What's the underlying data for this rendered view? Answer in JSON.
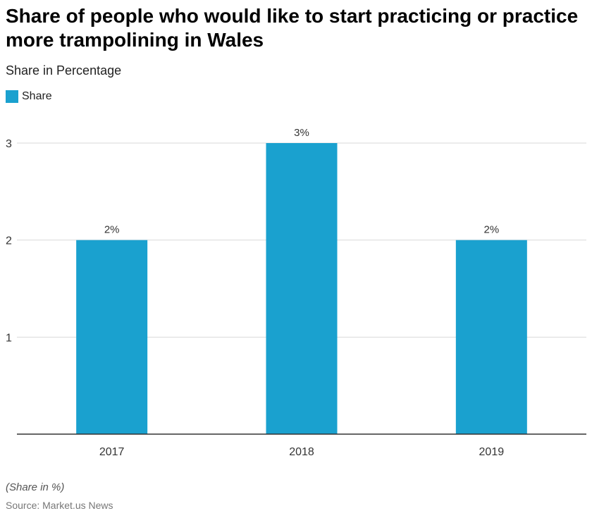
{
  "title": "Share of people who would like to start practicing or practice more trampolining in Wales",
  "subtitle": "Share in Percentage",
  "legend": {
    "label": "Share",
    "color": "#1aa1cf"
  },
  "chart_data": {
    "type": "bar",
    "categories": [
      "2017",
      "2018",
      "2019"
    ],
    "series": [
      {
        "name": "Share",
        "values": [
          2,
          3,
          2
        ],
        "labels": [
          "2%",
          "3%",
          "2%"
        ],
        "color": "#1aa1cf"
      }
    ],
    "ylim": [
      0,
      3
    ],
    "yticks": [
      "1",
      "2",
      "3"
    ],
    "grid": true
  },
  "footer": {
    "note": "(Share in %)",
    "source": "Source: Market.us News"
  }
}
